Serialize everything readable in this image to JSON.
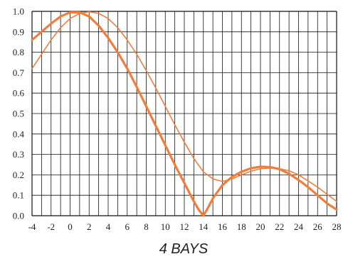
{
  "chart_data": {
    "type": "line",
    "title": "4 BAYS",
    "xlabel": "",
    "ylabel": "",
    "xlim": [
      -4,
      28
    ],
    "ylim": [
      0,
      1
    ],
    "grid": true,
    "x_ticks": [
      -4,
      -2,
      0,
      2,
      4,
      6,
      8,
      10,
      12,
      14,
      16,
      18,
      20,
      22,
      24,
      26,
      28
    ],
    "x_tick_labels": [
      "-4",
      "-2",
      "0",
      "2",
      "4",
      "6",
      "8",
      "10",
      "12",
      "14",
      "16",
      "18",
      "20",
      "22",
      "24",
      "26",
      "28"
    ],
    "y_ticks": [
      0,
      0.1,
      0.2,
      0.3,
      0.4,
      0.5,
      0.6,
      0.7,
      0.8,
      0.9,
      1.0
    ],
    "y_tick_labels": [
      "0.0",
      "0.1",
      "0.2",
      "0.3",
      "0.4",
      "0.5",
      "0.6",
      "0.7",
      "0.8",
      "0.9",
      "1.0"
    ],
    "series": [
      {
        "color": "#f07d3a",
        "stroke": "thick",
        "points": [
          [
            -4,
            0.86
          ],
          [
            -3,
            0.9
          ],
          [
            -2,
            0.94
          ],
          [
            -1,
            0.975
          ],
          [
            0,
            0.995
          ],
          [
            1,
            0.995
          ],
          [
            2,
            0.975
          ],
          [
            3,
            0.93
          ],
          [
            4,
            0.87
          ],
          [
            5,
            0.8
          ],
          [
            6,
            0.72
          ],
          [
            7,
            0.63
          ],
          [
            8,
            0.535
          ],
          [
            9,
            0.44
          ],
          [
            10,
            0.345
          ],
          [
            11,
            0.25
          ],
          [
            12,
            0.16
          ],
          [
            13,
            0.07
          ],
          [
            13.5,
            0.03
          ],
          [
            14,
            0.0
          ],
          [
            14.5,
            0.04
          ],
          [
            15,
            0.085
          ],
          [
            16,
            0.15
          ],
          [
            17,
            0.19
          ],
          [
            18,
            0.215
          ],
          [
            19,
            0.232
          ],
          [
            20,
            0.24
          ],
          [
            21,
            0.238
          ],
          [
            22,
            0.228
          ],
          [
            23,
            0.205
          ],
          [
            24,
            0.175
          ],
          [
            25,
            0.14
          ],
          [
            26,
            0.1
          ],
          [
            27,
            0.06
          ],
          [
            28,
            0.03
          ]
        ]
      },
      {
        "color": "#f07d3a",
        "stroke": "thin",
        "points": [
          [
            -4,
            0.72
          ],
          [
            -3,
            0.79
          ],
          [
            -2,
            0.86
          ],
          [
            -1,
            0.92
          ],
          [
            0,
            0.965
          ],
          [
            1,
            0.99
          ],
          [
            2,
            0.998
          ],
          [
            3,
            0.99
          ],
          [
            4,
            0.965
          ],
          [
            5,
            0.92
          ],
          [
            6,
            0.86
          ],
          [
            7,
            0.79
          ],
          [
            8,
            0.71
          ],
          [
            9,
            0.625
          ],
          [
            10,
            0.535
          ],
          [
            11,
            0.445
          ],
          [
            12,
            0.36
          ],
          [
            13,
            0.28
          ],
          [
            14,
            0.215
          ],
          [
            15,
            0.18
          ],
          [
            16,
            0.168
          ],
          [
            17,
            0.18
          ],
          [
            18,
            0.2
          ],
          [
            19,
            0.218
          ],
          [
            20,
            0.23
          ],
          [
            21,
            0.233
          ],
          [
            22,
            0.23
          ],
          [
            23,
            0.22
          ],
          [
            24,
            0.2
          ],
          [
            25,
            0.17
          ],
          [
            26,
            0.14
          ],
          [
            27,
            0.105
          ],
          [
            28,
            0.07
          ]
        ]
      }
    ]
  }
}
